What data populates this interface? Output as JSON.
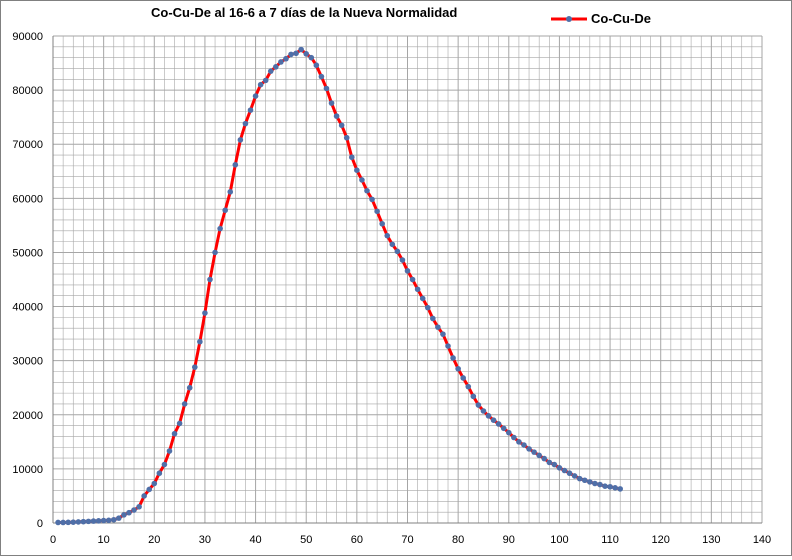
{
  "chart_data": {
    "type": "line",
    "title": "Co-Cu-De al 16-6 a 7 días de la Nueva Normalidad",
    "xlabel": "",
    "ylabel": "",
    "xlim": [
      0,
      140
    ],
    "ylim": [
      0,
      90000
    ],
    "x_ticks": [
      0,
      10,
      20,
      30,
      40,
      50,
      60,
      70,
      80,
      90,
      100,
      110,
      120,
      130,
      140
    ],
    "y_ticks": [
      0,
      10000,
      20000,
      30000,
      40000,
      50000,
      60000,
      70000,
      80000,
      90000
    ],
    "grid": true,
    "legend_position": "top-right",
    "colors": {
      "line": "#ff0000",
      "marker": "#4f6fa8",
      "grid": "#a6a6a6"
    },
    "series": [
      {
        "name": "Co-Cu-De",
        "x": [
          1,
          2,
          3,
          4,
          5,
          6,
          7,
          8,
          9,
          10,
          11,
          12,
          13,
          14,
          15,
          16,
          17,
          18,
          19,
          20,
          21,
          22,
          23,
          24,
          25,
          26,
          27,
          28,
          29,
          30,
          31,
          32,
          33,
          34,
          35,
          36,
          37,
          38,
          39,
          40,
          41,
          42,
          43,
          44,
          45,
          46,
          47,
          48,
          49,
          50,
          51,
          52,
          53,
          54,
          55,
          56,
          57,
          58,
          59,
          60,
          61,
          62,
          63,
          64,
          65,
          66,
          67,
          68,
          69,
          70,
          71,
          72,
          73,
          74,
          75,
          76,
          77,
          78,
          79,
          80,
          81,
          82,
          83,
          84,
          85,
          86,
          87,
          88,
          89,
          90,
          91,
          92,
          93,
          94,
          95,
          96,
          97,
          98,
          99,
          100,
          101,
          102,
          103,
          104,
          105,
          106,
          107,
          108,
          109,
          110,
          111,
          112
        ],
        "y": [
          100,
          100,
          120,
          150,
          200,
          250,
          300,
          350,
          400,
          450,
          500,
          600,
          900,
          1500,
          1900,
          2400,
          3000,
          5000,
          6200,
          7300,
          9200,
          10800,
          13300,
          16500,
          18400,
          22000,
          25000,
          28800,
          33500,
          38800,
          45000,
          50000,
          54400,
          57800,
          61200,
          66200,
          70800,
          73800,
          76300,
          78900,
          81000,
          81800,
          83500,
          84300,
          85200,
          85800,
          86600,
          86800,
          87500,
          86700,
          86000,
          84600,
          82500,
          80300,
          77600,
          75200,
          73500,
          71200,
          67600,
          65200,
          63400,
          61400,
          59800,
          57600,
          55300,
          53100,
          51500,
          50200,
          48600,
          46600,
          45000,
          43200,
          41500,
          39800,
          37800,
          36200,
          34900,
          32700,
          30500,
          28500,
          26800,
          25200,
          23400,
          21800,
          20700,
          19800,
          19000,
          18300,
          17500,
          16700,
          15800,
          15000,
          14400,
          13700,
          13100,
          12500,
          11900,
          11200,
          10800,
          10200,
          9700,
          9200,
          8700,
          8200,
          7900,
          7600,
          7300,
          7100,
          6800,
          6700,
          6500,
          6300
        ]
      }
    ]
  }
}
